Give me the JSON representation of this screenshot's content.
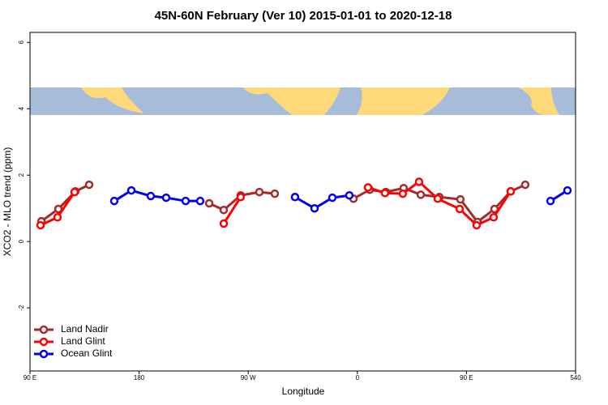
{
  "chart_data": {
    "type": "line",
    "title": "45N-60N February (Ver 10)   2015-01-01 to 2020-12-18",
    "x_label": "Longitude",
    "y_label": "XCO2 - MLO trend (ppm)",
    "xlim": [
      90,
      540
    ],
    "ylim": [
      -3.9,
      6.3
    ],
    "xticks": [
      {
        "value": 90,
        "label": "90 E"
      },
      180,
      {
        "value": 270,
        "label": "90 W"
      },
      {
        "value": 360,
        "label": "0"
      },
      {
        "value": 450,
        "label": "90 E"
      },
      540
    ],
    "yticks": [
      -2,
      0,
      2,
      4,
      6
    ],
    "legend": "bottom-left",
    "series": [
      {
        "name": "Land Nadir",
        "color": "#a52a2a",
        "x": [
          99.4,
          113.4,
          127.4,
          138.8,
          null,
          237.8,
          249.8,
          263.8,
          279.2,
          291.9,
          null,
          356.8,
          370.2,
          383.5,
          398.2,
          412.3,
          427.6,
          445,
          459.1,
          473.1,
          486.5,
          498.5
        ],
        "values": [
          0.61,
          0.98,
          1.51,
          1.71,
          null,
          1.15,
          0.95,
          1.39,
          1.49,
          1.44,
          null,
          1.29,
          1.56,
          1.49,
          1.61,
          1.41,
          1.34,
          1.27,
          0.59,
          0.98,
          1.51,
          1.71
        ]
      },
      {
        "name": "Land Glint",
        "color": "#ff0000",
        "x": [
          98.7,
          112.7,
          126.8,
          null,
          249.8,
          263.8,
          null,
          368.8,
          382.8,
          397.5,
          410.9,
          426.3,
          444.4,
          458.4,
          472.4,
          486.5
        ],
        "values": [
          0.49,
          0.73,
          1.49,
          null,
          0.54,
          1.34,
          null,
          1.63,
          1.46,
          1.44,
          1.8,
          1.29,
          0.98,
          0.49,
          0.73,
          1.51
        ]
      },
      {
        "name": "Ocean Glint",
        "color": "#0000ee",
        "x": [
          159.5,
          173.6,
          189.6,
          202.3,
          218.4,
          230.4,
          null,
          308.6,
          324.7,
          339.4,
          353.4,
          null,
          519.3,
          533.3
        ],
        "values": [
          1.22,
          1.54,
          1.37,
          1.32,
          1.22,
          1.22,
          null,
          1.34,
          1.0,
          1.32,
          1.39,
          null,
          1.22,
          1.54
        ]
      }
    ]
  }
}
